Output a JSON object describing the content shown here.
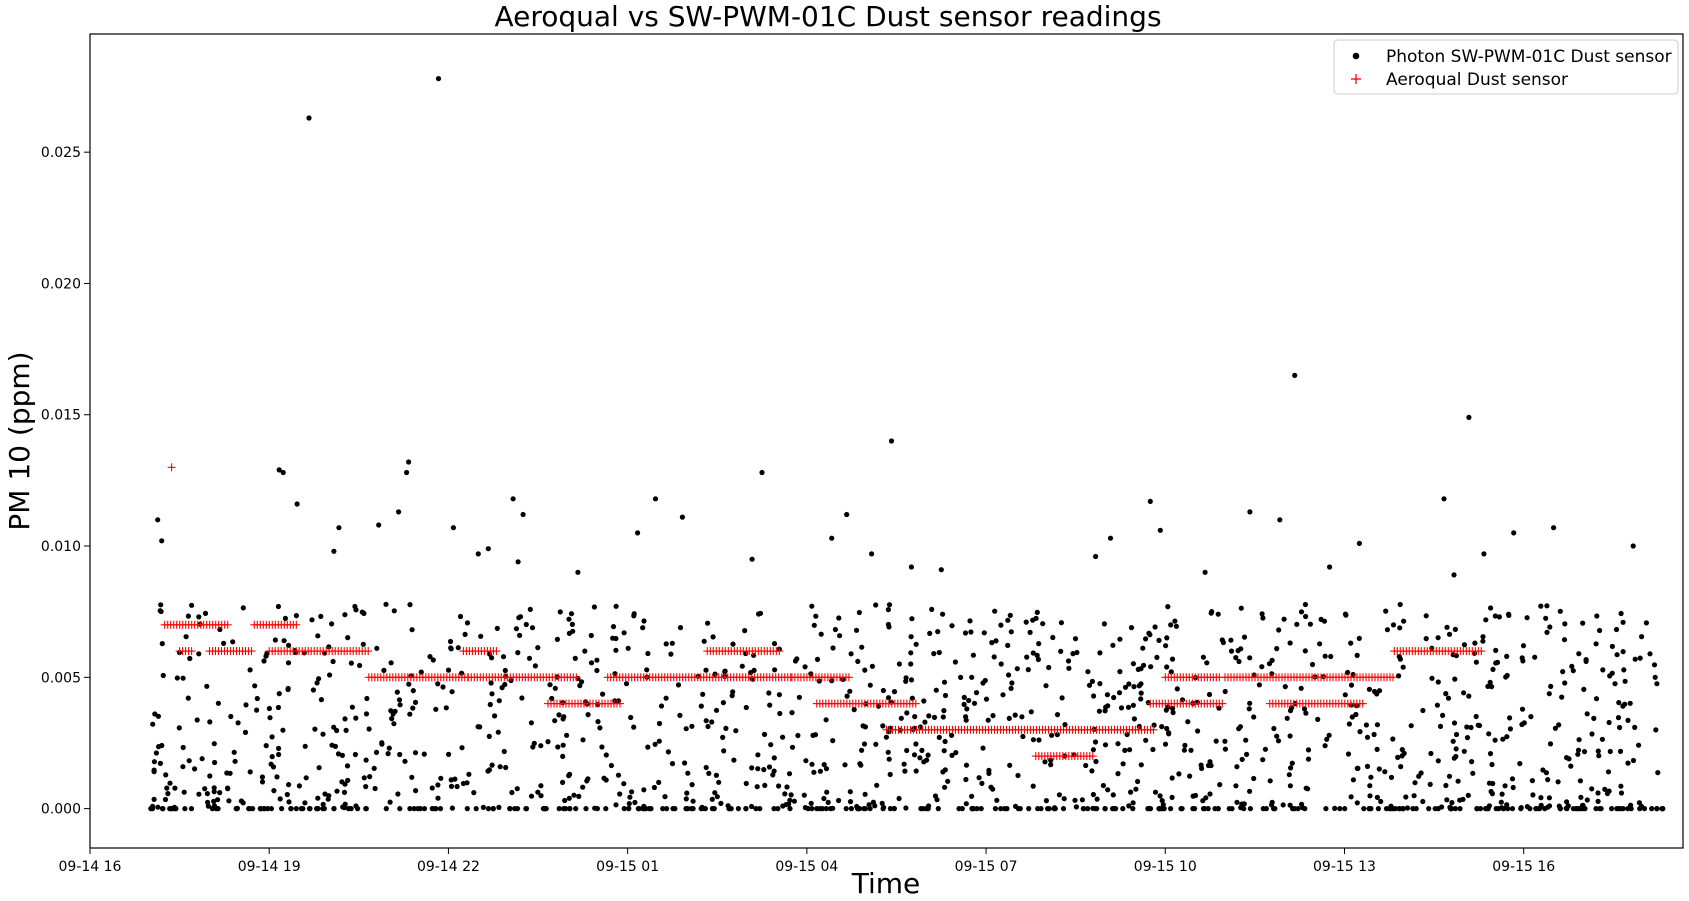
{
  "chart_data": {
    "type": "scatter",
    "title": "Aeroqual vs SW-PWM-01C Dust sensor readings",
    "xlabel": "Time",
    "ylabel": "PM 10 (ppm)",
    "x_axis_kind": "datetime",
    "xlim": [
      "2023-09-14 16:00",
      "2023-09-15 18:40"
    ],
    "ylim": [
      -0.0015,
      0.0295
    ],
    "xticks": [
      {
        "t": "2023-09-14 16:00",
        "label": "09-14 16"
      },
      {
        "t": "2023-09-14 19:00",
        "label": "09-14 19"
      },
      {
        "t": "2023-09-14 22:00",
        "label": "09-14 22"
      },
      {
        "t": "2023-09-15 01:00",
        "label": "09-15 01"
      },
      {
        "t": "2023-09-15 04:00",
        "label": "09-15 04"
      },
      {
        "t": "2023-09-15 07:00",
        "label": "09-15 07"
      },
      {
        "t": "2023-09-15 10:00",
        "label": "09-15 10"
      },
      {
        "t": "2023-09-15 13:00",
        "label": "09-15 13"
      },
      {
        "t": "2023-09-15 16:00",
        "label": "09-15 16"
      }
    ],
    "yticks": [
      {
        "v": 0.0,
        "label": "0.000"
      },
      {
        "v": 0.005,
        "label": "0.005"
      },
      {
        "v": 0.01,
        "label": "0.010"
      },
      {
        "v": 0.015,
        "label": "0.015"
      },
      {
        "v": 0.02,
        "label": "0.020"
      },
      {
        "v": 0.025,
        "label": "0.025"
      }
    ],
    "grid": false,
    "legend_position": "top-right",
    "series": [
      {
        "name": "Photon SW-PWM-01C Dust sensor",
        "marker": "dot",
        "color": "#000000",
        "points": [
          [
            "2023-09-14 17:08",
            0.011
          ],
          [
            "2023-09-14 17:12",
            0.0102
          ],
          [
            "2023-09-14 19:10",
            0.0129
          ],
          [
            "2023-09-14 19:14",
            0.0128
          ],
          [
            "2023-09-14 19:28",
            0.0116
          ],
          [
            "2023-09-14 19:40",
            0.0263
          ],
          [
            "2023-09-14 20:05",
            0.0098
          ],
          [
            "2023-09-14 20:10",
            0.0107
          ],
          [
            "2023-09-14 20:50",
            0.0108
          ],
          [
            "2023-09-14 21:10",
            0.0113
          ],
          [
            "2023-09-14 21:20",
            0.0132
          ],
          [
            "2023-09-14 21:18",
            0.0128
          ],
          [
            "2023-09-14 21:50",
            0.0278
          ],
          [
            "2023-09-14 22:05",
            0.0107
          ],
          [
            "2023-09-14 22:30",
            0.0097
          ],
          [
            "2023-09-14 22:40",
            0.0099
          ],
          [
            "2023-09-14 23:05",
            0.0118
          ],
          [
            "2023-09-14 23:15",
            0.0112
          ],
          [
            "2023-09-14 23:10",
            0.0094
          ],
          [
            "2023-09-15 00:10",
            0.009
          ],
          [
            "2023-09-15 01:10",
            0.0105
          ],
          [
            "2023-09-15 01:28",
            0.0118
          ],
          [
            "2023-09-15 01:55",
            0.0111
          ],
          [
            "2023-09-15 03:05",
            0.0095
          ],
          [
            "2023-09-15 03:15",
            0.0128
          ],
          [
            "2023-09-15 04:25",
            0.0103
          ],
          [
            "2023-09-15 04:40",
            0.0112
          ],
          [
            "2023-09-15 05:05",
            0.0097
          ],
          [
            "2023-09-15 05:25",
            0.014
          ],
          [
            "2023-09-15 05:45",
            0.0092
          ],
          [
            "2023-09-15 06:15",
            0.0091
          ],
          [
            "2023-09-15 08:50",
            0.0096
          ],
          [
            "2023-09-15 09:05",
            0.0103
          ],
          [
            "2023-09-15 09:45",
            0.0117
          ],
          [
            "2023-09-15 09:55",
            0.0106
          ],
          [
            "2023-09-15 10:40",
            0.009
          ],
          [
            "2023-09-15 11:25",
            0.0113
          ],
          [
            "2023-09-15 11:55",
            0.011
          ],
          [
            "2023-09-15 12:10",
            0.0165
          ],
          [
            "2023-09-15 12:45",
            0.0092
          ],
          [
            "2023-09-15 13:15",
            0.0101
          ],
          [
            "2023-09-15 14:40",
            0.0118
          ],
          [
            "2023-09-15 14:50",
            0.0089
          ],
          [
            "2023-09-15 15:05",
            0.0149
          ],
          [
            "2023-09-15 15:20",
            0.0097
          ],
          [
            "2023-09-15 15:50",
            0.0105
          ],
          [
            "2023-09-15 16:30",
            0.0107
          ],
          [
            "2023-09-15 17:50",
            0.01
          ]
        ],
        "bulk": {
          "description_of_pattern": "dense band of readings",
          "start": "2023-09-14 17:00",
          "end": "2023-09-15 18:20",
          "count": 1500,
          "typical_range": [
            0.0,
            0.0078
          ],
          "zero_fraction": 0.18
        }
      },
      {
        "name": "Aeroqual Dust sensor",
        "marker": "plus",
        "color": "#ff0000",
        "points": [
          [
            "2023-09-14 17:22",
            0.013
          ]
        ],
        "segments": [
          {
            "start": "2023-09-14 17:15",
            "end": "2023-09-14 18:20",
            "value": 0.007
          },
          {
            "start": "2023-09-14 17:30",
            "end": "2023-09-14 17:45",
            "value": 0.006
          },
          {
            "start": "2023-09-14 18:00",
            "end": "2023-09-14 18:45",
            "value": 0.006
          },
          {
            "start": "2023-09-14 18:45",
            "end": "2023-09-14 19:30",
            "value": 0.007
          },
          {
            "start": "2023-09-14 19:00",
            "end": "2023-09-14 20:40",
            "value": 0.006
          },
          {
            "start": "2023-09-14 20:40",
            "end": "2023-09-14 22:20",
            "value": 0.005
          },
          {
            "start": "2023-09-14 22:15",
            "end": "2023-09-14 22:50",
            "value": 0.006
          },
          {
            "start": "2023-09-14 22:20",
            "end": "2023-09-15 00:10",
            "value": 0.005
          },
          {
            "start": "2023-09-14 23:40",
            "end": "2023-09-15 00:55",
            "value": 0.004
          },
          {
            "start": "2023-09-15 00:40",
            "end": "2023-09-15 03:45",
            "value": 0.005
          },
          {
            "start": "2023-09-15 02:20",
            "end": "2023-09-15 03:35",
            "value": 0.006
          },
          {
            "start": "2023-09-15 03:45",
            "end": "2023-09-15 04:45",
            "value": 0.005
          },
          {
            "start": "2023-09-15 04:10",
            "end": "2023-09-15 05:50",
            "value": 0.004
          },
          {
            "start": "2023-09-15 05:20",
            "end": "2023-09-15 09:50",
            "value": 0.003
          },
          {
            "start": "2023-09-15 07:50",
            "end": "2023-09-15 08:50",
            "value": 0.002
          },
          {
            "start": "2023-09-15 09:45",
            "end": "2023-09-15 11:00",
            "value": 0.004
          },
          {
            "start": "2023-09-15 10:00",
            "end": "2023-09-15 10:55",
            "value": 0.005
          },
          {
            "start": "2023-09-15 11:00",
            "end": "2023-09-15 13:50",
            "value": 0.005
          },
          {
            "start": "2023-09-15 11:45",
            "end": "2023-09-15 13:20",
            "value": 0.004
          },
          {
            "start": "2023-09-15 13:50",
            "end": "2023-09-15 15:20",
            "value": 0.006
          }
        ]
      }
    ]
  }
}
